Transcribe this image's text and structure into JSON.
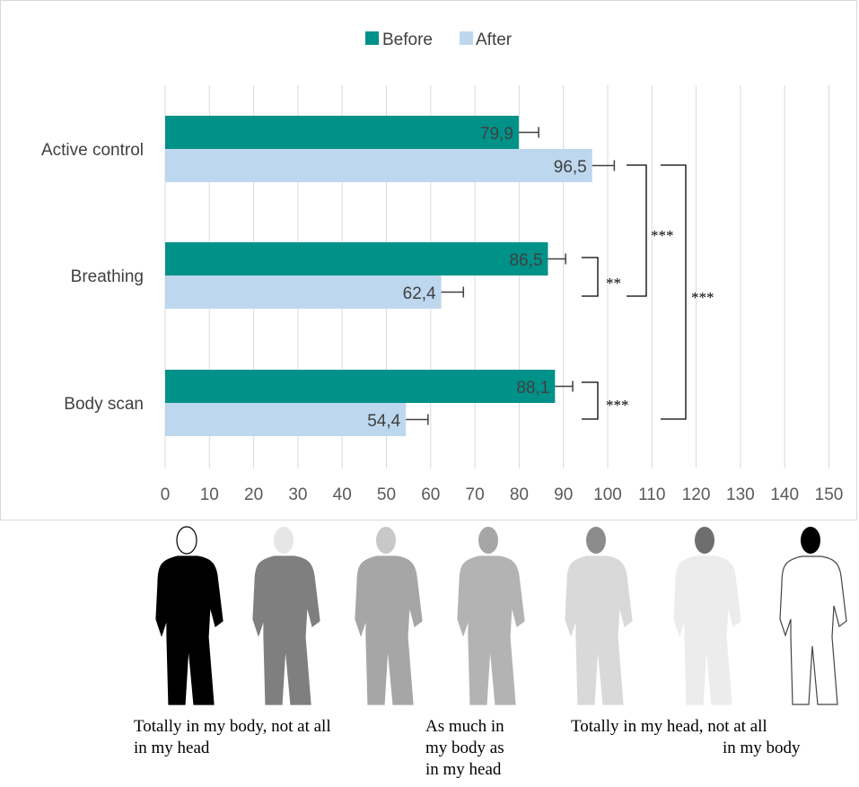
{
  "chart_data": {
    "type": "bar",
    "orientation": "horizontal",
    "categories": [
      "Active control",
      "Breathing",
      "Body scan"
    ],
    "series": [
      {
        "name": "Before",
        "color": "#009188",
        "values": [
          79.9,
          86.5,
          88.1
        ],
        "errors": [
          4.5,
          4.0,
          4.0
        ]
      },
      {
        "name": "After",
        "color": "#bdd7ee",
        "values": [
          96.5,
          62.4,
          54.4
        ],
        "errors": [
          5.0,
          5.0,
          5.0
        ]
      }
    ],
    "data_labels": {
      "Before": [
        "79,9",
        "86,5",
        "88,1"
      ],
      "After": [
        "96,5",
        "62,4",
        "54,4"
      ]
    },
    "x_ticks": [
      "0",
      "10",
      "20",
      "30",
      "40",
      "50",
      "60",
      "70",
      "80",
      "90",
      "100",
      "110",
      "120",
      "130",
      "140",
      "150"
    ],
    "xlim": [
      0,
      150
    ],
    "grid": "vertical",
    "legend_position": "top",
    "significance": [
      {
        "between": "Breathing Before vs After",
        "label": "**"
      },
      {
        "between": "Body scan Before vs After",
        "label": "***"
      },
      {
        "between": "Active control After vs Breathing After",
        "label": "***"
      },
      {
        "between": "Active control After vs Body scan After",
        "label": "***"
      }
    ]
  },
  "legend": {
    "before": "Before",
    "after": "After"
  },
  "figures": {
    "shades": [
      "#000000",
      "#7f7f7f",
      "#a6a6a6",
      "#b3b3b3",
      "#d9d9d9",
      "#ececec",
      "#ffffff"
    ],
    "head_shades": [
      "#ffffff",
      "#e6e6e6",
      "#c8c8c8",
      "#a6a6a6",
      "#8c8c8c",
      "#6e6e6e",
      "#000000"
    ]
  },
  "captions": {
    "left_line1": "Totally in my body, not at all",
    "left_line2": "in my head",
    "mid_line1": "As much in",
    "mid_line2": "my body as",
    "mid_line3": "in my head",
    "right_line1": "Totally in my head, not at all",
    "right_line2": "in my body"
  }
}
